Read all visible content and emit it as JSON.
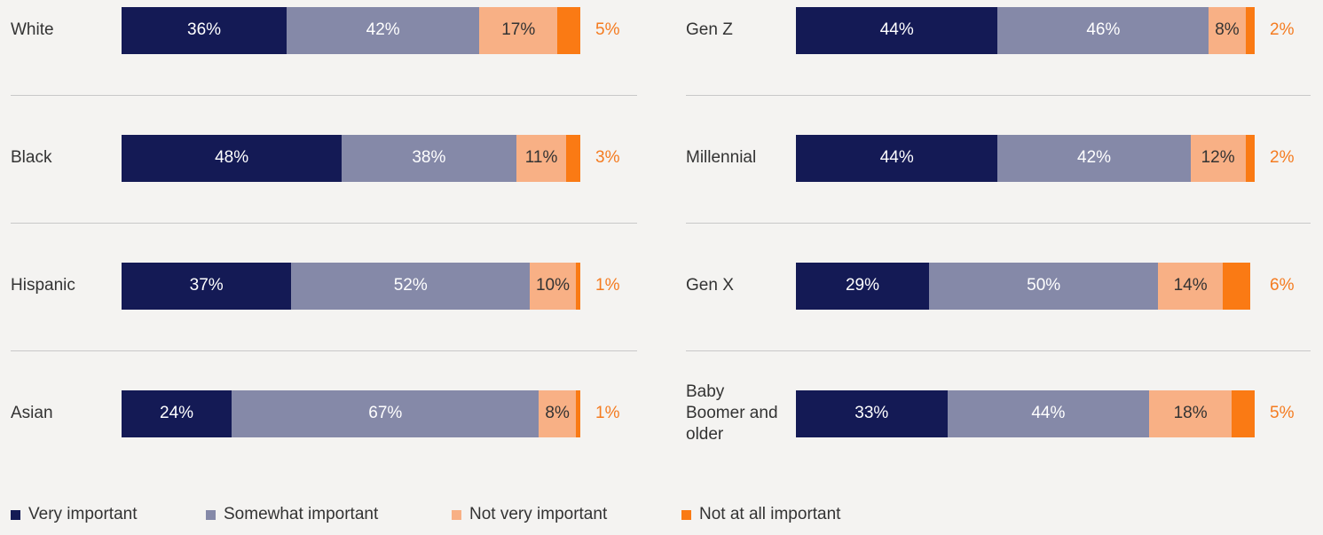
{
  "chart_data": {
    "type": "bar",
    "orientation": "horizontal",
    "stacked": true,
    "categories": [
      "White",
      "Black",
      "Hispanic",
      "Asian",
      "Gen Z",
      "Millennial",
      "Gen X",
      "Baby Boomer and older"
    ],
    "xlim": [
      0,
      100
    ],
    "series": [
      {
        "name": "Very important",
        "color": "#141a55",
        "values": [
          36,
          48,
          37,
          24,
          44,
          44,
          29,
          33
        ],
        "value_labels": [
          "36%",
          "48%",
          "37%",
          "24%",
          "44%",
          "44%",
          "29%",
          "33%"
        ]
      },
      {
        "name": "Somewhat important",
        "color": "#8589a8",
        "values": [
          42,
          38,
          52,
          67,
          46,
          42,
          50,
          44
        ],
        "value_labels": [
          "42%",
          "38%",
          "52%",
          "67%",
          "46%",
          "42%",
          "50%",
          "44%"
        ]
      },
      {
        "name": "Not very important",
        "color": "#f8b085",
        "values": [
          17,
          11,
          10,
          8,
          8,
          12,
          14,
          18
        ],
        "value_labels": [
          "17%",
          "11%",
          "10%",
          "8%",
          "8%",
          "12%",
          "14%",
          "18%"
        ]
      },
      {
        "name": "Not at all important",
        "color": "#fa7a14",
        "values": [
          5,
          3,
          1,
          1,
          2,
          2,
          6,
          5
        ],
        "value_labels": [
          "5%",
          "3%",
          "1%",
          "1%",
          "2%",
          "2%",
          "6%",
          "5%"
        ]
      }
    ],
    "legend": "bottom-left"
  }
}
